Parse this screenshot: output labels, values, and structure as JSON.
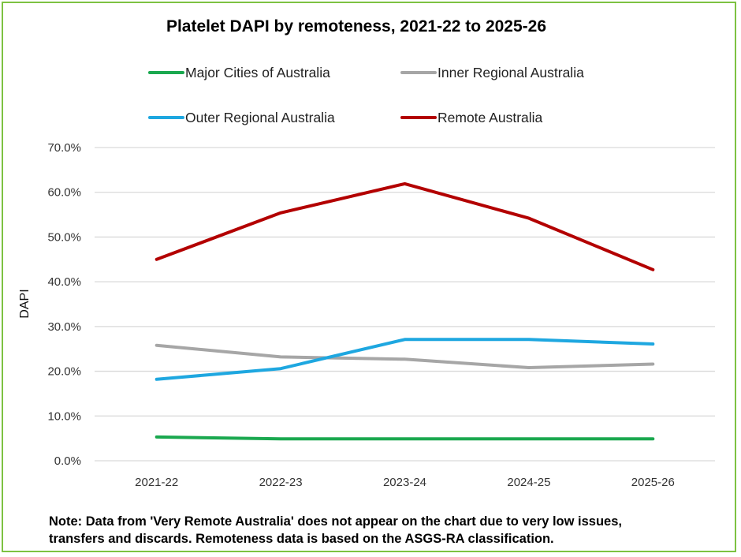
{
  "chart_data": {
    "type": "line",
    "title": "Platelet DAPI by remoteness, 2021-22 to 2025-26",
    "ylabel": "DAPI",
    "xlabel": "",
    "categories": [
      "2021-22",
      "2022-23",
      "2023-24",
      "2024-25",
      "2025-26"
    ],
    "ylim": [
      0,
      70
    ],
    "yticks": [
      "0.0%",
      "10.0%",
      "20.0%",
      "30.0%",
      "40.0%",
      "50.0%",
      "60.0%",
      "70.0%"
    ],
    "grid": true,
    "legend_position": "top",
    "series": [
      {
        "name": "Major Cities of Australia",
        "color": "#1aa84f",
        "values": [
          5.3,
          4.9,
          4.9,
          4.9,
          4.9
        ]
      },
      {
        "name": "Inner Regional Australia",
        "color": "#a6a6a6",
        "values": [
          25.8,
          23.2,
          22.7,
          20.8,
          21.6
        ]
      },
      {
        "name": "Outer Regional Australia",
        "color": "#1ea7e0",
        "values": [
          18.2,
          20.6,
          27.1,
          27.1,
          26.1
        ]
      },
      {
        "name": "Remote Australia",
        "color": "#b30000",
        "values": [
          45.0,
          55.4,
          61.9,
          54.2,
          42.7
        ]
      }
    ]
  },
  "note": {
    "line1": "Note: Data from 'Very Remote Australia' does not appear on the chart due to very low issues,",
    "line2": "transfers and discards. Remoteness data is based on the ASGS-RA classification."
  }
}
